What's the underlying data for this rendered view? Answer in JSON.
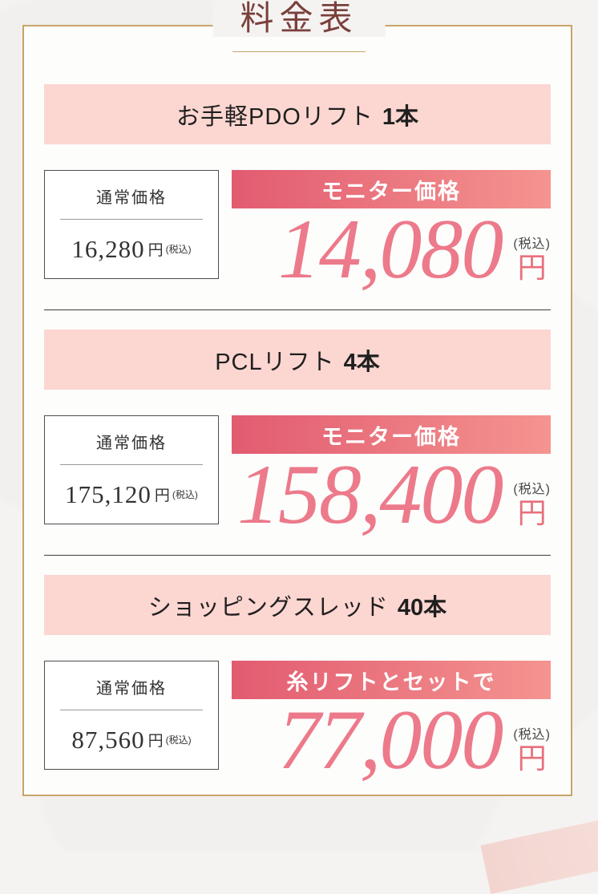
{
  "page": {
    "title": "料金表"
  },
  "sections": [
    {
      "name": "お手軽PDOリフト",
      "count": "1本",
      "regular": {
        "label": "通常価格",
        "price": "16,280",
        "unit": "円",
        "tax": "(税込)"
      },
      "monitor": {
        "label": "モニター価格",
        "price": "14,080",
        "unit": "円",
        "tax": "(税込)"
      }
    },
    {
      "name": "PCLリフト",
      "count": "4本",
      "regular": {
        "label": "通常価格",
        "price": "175,120",
        "unit": "円",
        "tax": "(税込)"
      },
      "monitor": {
        "label": "モニター価格",
        "price": "158,400",
        "unit": "円",
        "tax": "(税込)"
      }
    },
    {
      "name": "ショッピングスレッド",
      "count": "40本",
      "regular": {
        "label": "通常価格",
        "price": "87,560",
        "unit": "円",
        "tax": "(税込)"
      },
      "monitor": {
        "label": "糸リフトとセットで",
        "price": "77,000",
        "unit": "円",
        "tax": "(税込)"
      }
    }
  ],
  "colors": {
    "page_background": "#f5f3f1",
    "frame_gold": "#c7a469",
    "title_text": "#7a403c",
    "section_header_background": "#fcd6d1",
    "monitor_bar_gradient_left": "#e25b70",
    "monitor_bar_gradient_right": "#f49490",
    "monitor_price_pink": "#ec7a8a",
    "regular_text": "#333333"
  }
}
